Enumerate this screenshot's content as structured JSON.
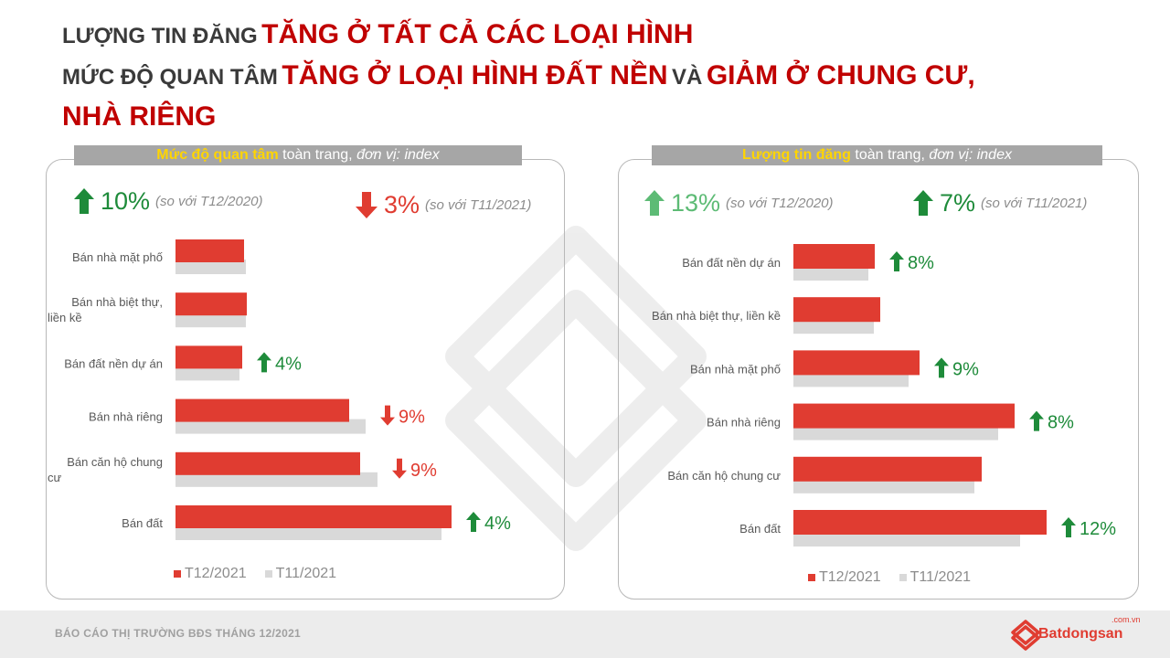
{
  "headline": {
    "line1_prefix": "LƯỢNG TIN ĐĂNG",
    "line1_emph": "TĂNG Ở TẤT CẢ CÁC LOẠI HÌNH",
    "line2_prefix": "MỨC ĐỘ QUAN TÂM",
    "line2_emph1": "TĂNG Ở LOẠI HÌNH ĐẤT NỀN",
    "line2_mid": "VÀ",
    "line2_emph2": "GIẢM Ở CHUNG CƯ,",
    "line3_emph": "NHÀ RIÊNG"
  },
  "left": {
    "title_hi": "Mức độ quan tâm",
    "title_rest": "toàn trang,",
    "title_unit": "đơn vị: index",
    "summary1": {
      "pct": "10%",
      "note": "(so với T12/2020)",
      "dir": "up"
    },
    "summary2": {
      "pct": "3%",
      "note": "(so với T11/2021)",
      "dir": "down"
    }
  },
  "right": {
    "title_hi": "Lượng tin đăng",
    "title_rest": "toàn trang,",
    "title_unit": "đơn vị: index",
    "summary1": {
      "pct": "13%",
      "note": "(so với T12/2020)",
      "dir": "up"
    },
    "summary2": {
      "pct": "7%",
      "note": "(so với T11/2021)",
      "dir": "up"
    }
  },
  "chart_data": [
    {
      "type": "bar",
      "orientation": "horizontal",
      "title": "Mức độ quan tâm toàn trang, đơn vị: index",
      "categories": [
        "Bán nhà mặt phố",
        "Bán nhà biệt thự, liền kề",
        "Bán đất nền dự án",
        "Bán nhà riêng",
        "Bán căn hộ chung cư",
        "Bán đất"
      ],
      "series": [
        {
          "name": "T12/2021",
          "color": "#e03c31",
          "values": [
            75,
            78,
            73,
            190,
            202,
            302
          ]
        },
        {
          "name": "T11/2021",
          "color": "#d9d9d9",
          "values": [
            77,
            77,
            70,
            208,
            221,
            291
          ]
        }
      ],
      "change_labels": [
        "",
        "",
        "4%",
        "9%",
        "9%",
        "4%"
      ],
      "change_dirs": [
        "",
        "",
        "up",
        "down",
        "down",
        "up"
      ],
      "xlim": [
        0,
        320
      ],
      "grid": false,
      "legend": "bottom"
    },
    {
      "type": "bar",
      "orientation": "horizontal",
      "title": "Lượng tin đăng toàn trang, đơn vị: index",
      "categories": [
        "Bán đất nền dự án",
        "Bán nhà biệt thự, liền kề",
        "Bán nhà mặt phố",
        "Bán nhà riêng",
        "Bán căn hộ chung cư",
        "Bán đất"
      ],
      "series": [
        {
          "name": "T12/2021",
          "color": "#e03c31",
          "values": [
            89,
            95,
            138,
            242,
            206,
            277
          ]
        },
        {
          "name": "T11/2021",
          "color": "#d9d9d9",
          "values": [
            82,
            88,
            126,
            224,
            198,
            248
          ]
        }
      ],
      "change_labels": [
        "8%",
        "",
        "9%",
        "8%",
        "",
        "12%"
      ],
      "change_dirs": [
        "up",
        "",
        "up",
        "up",
        "",
        "up"
      ],
      "xlim": [
        0,
        320
      ],
      "grid": false,
      "legend": "bottom"
    }
  ],
  "footer": {
    "report": "BÁO CÁO THỊ TRƯỜNG BĐS THÁNG 12/2021",
    "brand": "Batdongsan",
    "brand_suffix": ".com.vn"
  }
}
